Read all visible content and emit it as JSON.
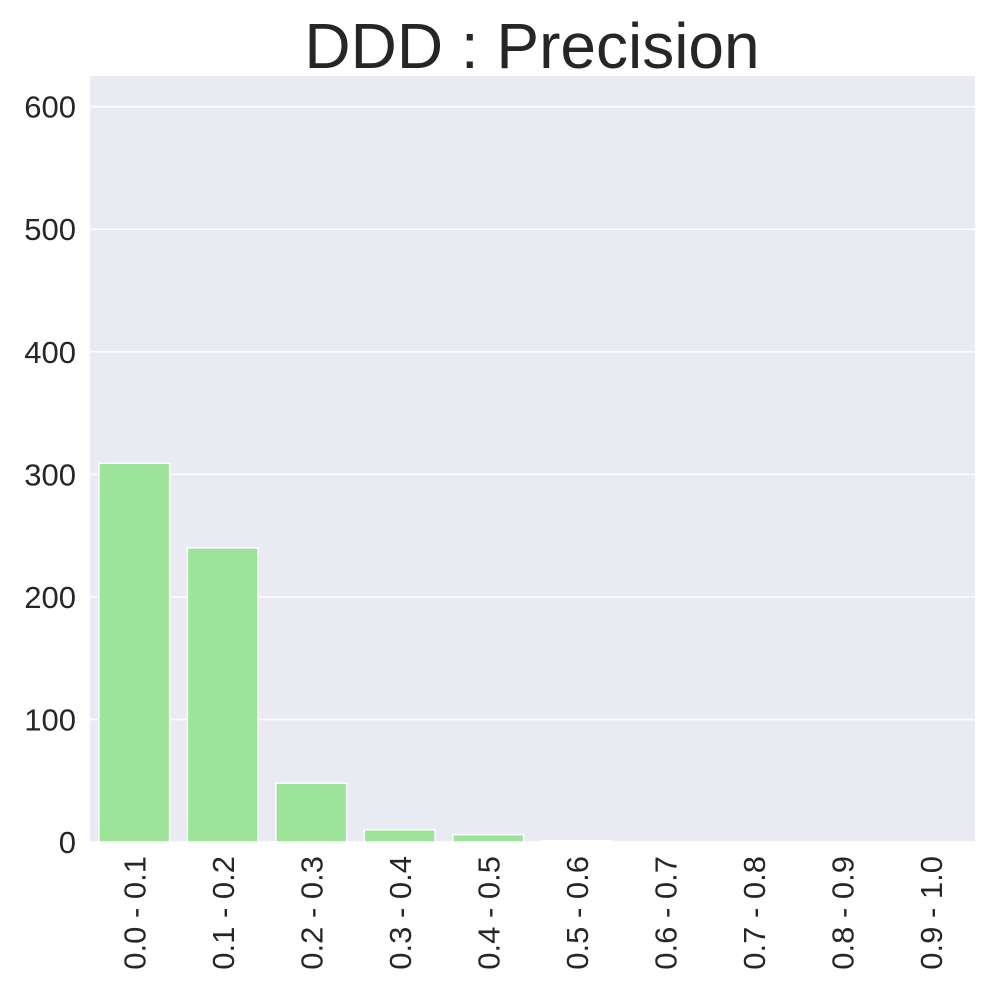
{
  "chart_data": {
    "type": "bar",
    "title": "DDD : Precision",
    "xlabel": "",
    "ylabel": "",
    "categories": [
      "0.0 - 0.1",
      "0.1 - 0.2",
      "0.2 - 0.3",
      "0.3 - 0.4",
      "0.4 - 0.5",
      "0.5 - 0.6",
      "0.6 - 0.7",
      "0.7 - 0.8",
      "0.8 - 0.9",
      "0.9 - 1.0"
    ],
    "values": [
      309,
      240,
      48,
      10,
      6,
      1,
      0,
      0,
      0,
      0
    ],
    "ylim": [
      0,
      625
    ],
    "yticks": [
      0,
      100,
      200,
      300,
      400,
      500,
      600
    ],
    "grid": true,
    "colors": {
      "bar": "#9de39a",
      "plot_background": "#eaeaf2",
      "grid": "#ffffff",
      "text": "#262626"
    }
  }
}
